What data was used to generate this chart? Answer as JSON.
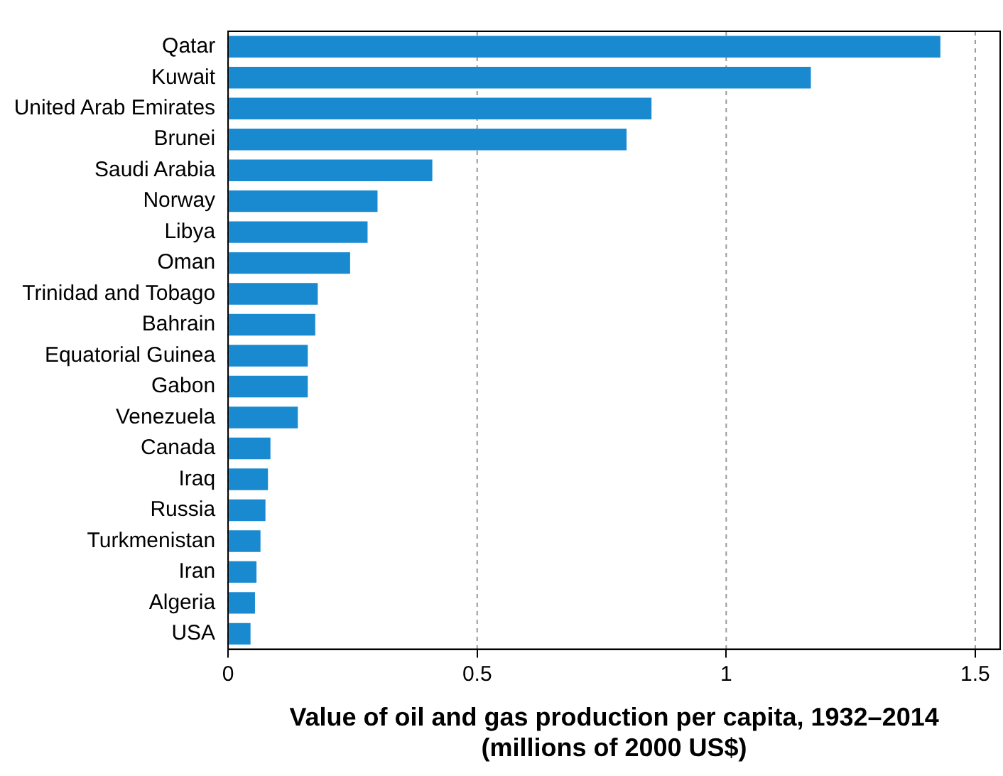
{
  "chart_data": {
    "type": "bar",
    "orientation": "horizontal",
    "xlabel": "Value of oil and gas production per capita, 1932–2014\n(millions of 2000 US$)",
    "categories": [
      "Qatar",
      "Kuwait",
      "United Arab Emirates",
      "Brunei",
      "Saudi Arabia",
      "Norway",
      "Libya",
      "Oman",
      "Trinidad and Tobago",
      "Bahrain",
      "Equatorial Guinea",
      "Gabon",
      "Venezuela",
      "Canada",
      "Iraq",
      "Russia",
      "Turkmenistan",
      "Iran",
      "Algeria",
      "USA"
    ],
    "values": [
      1.43,
      1.17,
      0.85,
      0.8,
      0.41,
      0.3,
      0.28,
      0.245,
      0.18,
      0.175,
      0.16,
      0.16,
      0.14,
      0.085,
      0.08,
      0.075,
      0.065,
      0.057,
      0.054,
      0.045
    ],
    "color": "#1a8ad0",
    "xlim": [
      0,
      1.55
    ],
    "xticks": [
      0,
      0.5,
      1,
      1.5
    ],
    "grid": "x",
    "legend": false
  }
}
